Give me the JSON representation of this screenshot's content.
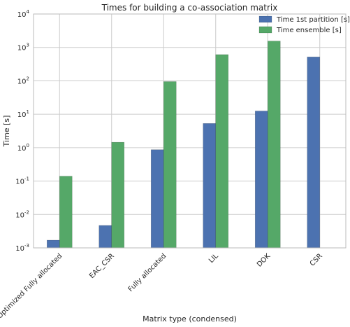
{
  "chart_data": {
    "type": "bar",
    "title": "Times for building a co-association matrix",
    "xlabel": "Matrix type (condensed)",
    "ylabel": "Time [s]",
    "yscale": "log",
    "ylim": [
      0.001,
      10000
    ],
    "grid": true,
    "legend_position": "top-right",
    "categories": [
      "Optimized Fully allocated",
      "EAC_CSR",
      "Fully allocated",
      "LIL",
      "DOK",
      "CSR"
    ],
    "series": [
      {
        "name": "Time 1st partition [s]",
        "color": "#4c72b0",
        "values": [
          0.0017,
          0.0047,
          0.87,
          5.3,
          12.5,
          520
        ]
      },
      {
        "name": "Time ensemble [s]",
        "color": "#55a868",
        "values": [
          0.14,
          1.45,
          95,
          610,
          1550,
          null
        ]
      }
    ],
    "y_ticks": [
      {
        "value": 0.001,
        "base": "10",
        "exp": "-3"
      },
      {
        "value": 0.01,
        "base": "10",
        "exp": "-2"
      },
      {
        "value": 0.1,
        "base": "10",
        "exp": "-1"
      },
      {
        "value": 1,
        "base": "10",
        "exp": "0"
      },
      {
        "value": 10,
        "base": "10",
        "exp": "1"
      },
      {
        "value": 100,
        "base": "10",
        "exp": "2"
      },
      {
        "value": 1000,
        "base": "10",
        "exp": "3"
      },
      {
        "value": 10000,
        "base": "10",
        "exp": "4"
      }
    ]
  }
}
